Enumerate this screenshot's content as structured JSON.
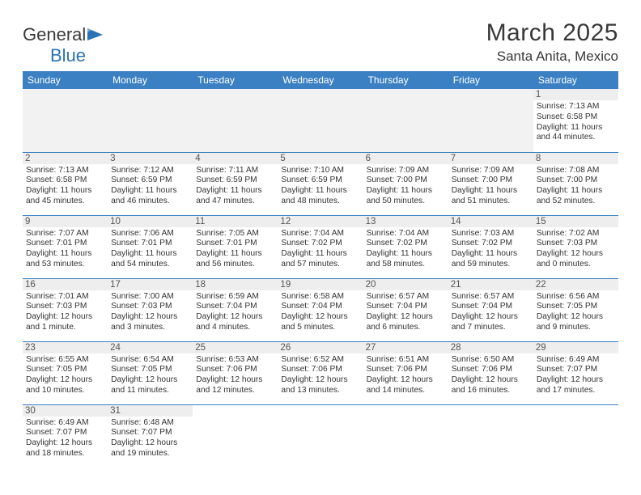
{
  "logo": {
    "text1": "General",
    "text2": "Blue"
  },
  "title": "March 2025",
  "location": "Santa Anita, Mexico",
  "weekdays": [
    "Sunday",
    "Monday",
    "Tuesday",
    "Wednesday",
    "Thursday",
    "Friday",
    "Saturday"
  ],
  "colors": {
    "header_bg": "#3b80c2",
    "header_fg": "#ffffff",
    "rule": "#3b80c2",
    "daynum_bg": "#eeeeee",
    "logo_blue": "#2a72b5"
  },
  "weeks": [
    [
      null,
      null,
      null,
      null,
      null,
      null,
      {
        "n": "1",
        "sr": "Sunrise: 7:13 AM",
        "ss": "Sunset: 6:58 PM",
        "dl": "Daylight: 11 hours and 44 minutes."
      }
    ],
    [
      {
        "n": "2",
        "sr": "Sunrise: 7:13 AM",
        "ss": "Sunset: 6:58 PM",
        "dl": "Daylight: 11 hours and 45 minutes."
      },
      {
        "n": "3",
        "sr": "Sunrise: 7:12 AM",
        "ss": "Sunset: 6:59 PM",
        "dl": "Daylight: 11 hours and 46 minutes."
      },
      {
        "n": "4",
        "sr": "Sunrise: 7:11 AM",
        "ss": "Sunset: 6:59 PM",
        "dl": "Daylight: 11 hours and 47 minutes."
      },
      {
        "n": "5",
        "sr": "Sunrise: 7:10 AM",
        "ss": "Sunset: 6:59 PM",
        "dl": "Daylight: 11 hours and 48 minutes."
      },
      {
        "n": "6",
        "sr": "Sunrise: 7:09 AM",
        "ss": "Sunset: 7:00 PM",
        "dl": "Daylight: 11 hours and 50 minutes."
      },
      {
        "n": "7",
        "sr": "Sunrise: 7:09 AM",
        "ss": "Sunset: 7:00 PM",
        "dl": "Daylight: 11 hours and 51 minutes."
      },
      {
        "n": "8",
        "sr": "Sunrise: 7:08 AM",
        "ss": "Sunset: 7:00 PM",
        "dl": "Daylight: 11 hours and 52 minutes."
      }
    ],
    [
      {
        "n": "9",
        "sr": "Sunrise: 7:07 AM",
        "ss": "Sunset: 7:01 PM",
        "dl": "Daylight: 11 hours and 53 minutes."
      },
      {
        "n": "10",
        "sr": "Sunrise: 7:06 AM",
        "ss": "Sunset: 7:01 PM",
        "dl": "Daylight: 11 hours and 54 minutes."
      },
      {
        "n": "11",
        "sr": "Sunrise: 7:05 AM",
        "ss": "Sunset: 7:01 PM",
        "dl": "Daylight: 11 hours and 56 minutes."
      },
      {
        "n": "12",
        "sr": "Sunrise: 7:04 AM",
        "ss": "Sunset: 7:02 PM",
        "dl": "Daylight: 11 hours and 57 minutes."
      },
      {
        "n": "13",
        "sr": "Sunrise: 7:04 AM",
        "ss": "Sunset: 7:02 PM",
        "dl": "Daylight: 11 hours and 58 minutes."
      },
      {
        "n": "14",
        "sr": "Sunrise: 7:03 AM",
        "ss": "Sunset: 7:02 PM",
        "dl": "Daylight: 11 hours and 59 minutes."
      },
      {
        "n": "15",
        "sr": "Sunrise: 7:02 AM",
        "ss": "Sunset: 7:03 PM",
        "dl": "Daylight: 12 hours and 0 minutes."
      }
    ],
    [
      {
        "n": "16",
        "sr": "Sunrise: 7:01 AM",
        "ss": "Sunset: 7:03 PM",
        "dl": "Daylight: 12 hours and 1 minute."
      },
      {
        "n": "17",
        "sr": "Sunrise: 7:00 AM",
        "ss": "Sunset: 7:03 PM",
        "dl": "Daylight: 12 hours and 3 minutes."
      },
      {
        "n": "18",
        "sr": "Sunrise: 6:59 AM",
        "ss": "Sunset: 7:04 PM",
        "dl": "Daylight: 12 hours and 4 minutes."
      },
      {
        "n": "19",
        "sr": "Sunrise: 6:58 AM",
        "ss": "Sunset: 7:04 PM",
        "dl": "Daylight: 12 hours and 5 minutes."
      },
      {
        "n": "20",
        "sr": "Sunrise: 6:57 AM",
        "ss": "Sunset: 7:04 PM",
        "dl": "Daylight: 12 hours and 6 minutes."
      },
      {
        "n": "21",
        "sr": "Sunrise: 6:57 AM",
        "ss": "Sunset: 7:04 PM",
        "dl": "Daylight: 12 hours and 7 minutes."
      },
      {
        "n": "22",
        "sr": "Sunrise: 6:56 AM",
        "ss": "Sunset: 7:05 PM",
        "dl": "Daylight: 12 hours and 9 minutes."
      }
    ],
    [
      {
        "n": "23",
        "sr": "Sunrise: 6:55 AM",
        "ss": "Sunset: 7:05 PM",
        "dl": "Daylight: 12 hours and 10 minutes."
      },
      {
        "n": "24",
        "sr": "Sunrise: 6:54 AM",
        "ss": "Sunset: 7:05 PM",
        "dl": "Daylight: 12 hours and 11 minutes."
      },
      {
        "n": "25",
        "sr": "Sunrise: 6:53 AM",
        "ss": "Sunset: 7:06 PM",
        "dl": "Daylight: 12 hours and 12 minutes."
      },
      {
        "n": "26",
        "sr": "Sunrise: 6:52 AM",
        "ss": "Sunset: 7:06 PM",
        "dl": "Daylight: 12 hours and 13 minutes."
      },
      {
        "n": "27",
        "sr": "Sunrise: 6:51 AM",
        "ss": "Sunset: 7:06 PM",
        "dl": "Daylight: 12 hours and 14 minutes."
      },
      {
        "n": "28",
        "sr": "Sunrise: 6:50 AM",
        "ss": "Sunset: 7:06 PM",
        "dl": "Daylight: 12 hours and 16 minutes."
      },
      {
        "n": "29",
        "sr": "Sunrise: 6:49 AM",
        "ss": "Sunset: 7:07 PM",
        "dl": "Daylight: 12 hours and 17 minutes."
      }
    ],
    [
      {
        "n": "30",
        "sr": "Sunrise: 6:49 AM",
        "ss": "Sunset: 7:07 PM",
        "dl": "Daylight: 12 hours and 18 minutes."
      },
      {
        "n": "31",
        "sr": "Sunrise: 6:48 AM",
        "ss": "Sunset: 7:07 PM",
        "dl": "Daylight: 12 hours and 19 minutes."
      },
      null,
      null,
      null,
      null,
      null
    ]
  ]
}
